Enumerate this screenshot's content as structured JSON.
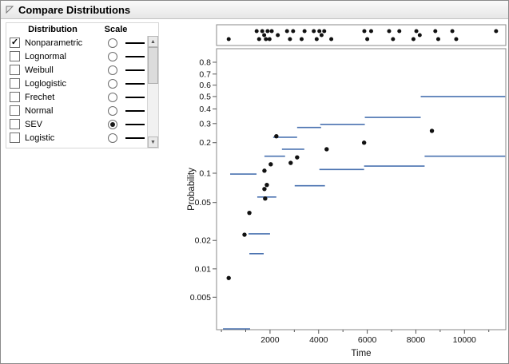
{
  "window": {
    "title": "Compare Distributions"
  },
  "glyphs": {
    "checkmark": "✓",
    "scroll_up": "▲",
    "scroll_down": "▼"
  },
  "panel": {
    "header": {
      "distribution": "Distribution",
      "scale": "Scale"
    },
    "rows": [
      {
        "label": "Nonparametric",
        "checked": true,
        "scale_selected": false
      },
      {
        "label": "Lognormal",
        "checked": false,
        "scale_selected": false
      },
      {
        "label": "Weibull",
        "checked": false,
        "scale_selected": false
      },
      {
        "label": "Loglogistic",
        "checked": false,
        "scale_selected": false
      },
      {
        "label": "Frechet",
        "checked": false,
        "scale_selected": false
      },
      {
        "label": "Normal",
        "checked": false,
        "scale_selected": false
      },
      {
        "label": "SEV",
        "checked": false,
        "scale_selected": true
      },
      {
        "label": "Logistic",
        "checked": false,
        "scale_selected": false
      }
    ]
  },
  "chart_data": {
    "type": "scatter",
    "title": "",
    "xlabel": "Time",
    "ylabel": "Probability",
    "y_scale": "sev-probability",
    "axes": {
      "xlim": [
        -200,
        11700
      ],
      "x_ticks": [
        2000,
        4000,
        6000,
        8000,
        10000
      ],
      "x_minor_ticks": [
        0,
        1000,
        3000,
        5000,
        7000,
        9000,
        11000
      ],
      "y_ticks": [
        0.8,
        0.7,
        0.6,
        0.5,
        0.4,
        0.3,
        0.2,
        0.1,
        0.05,
        0.02,
        0.01,
        0.005
      ]
    },
    "colors": {
      "points": "#111111",
      "steps": "#4a72b0",
      "frame": "#8a8a8a",
      "tick": "#555555"
    },
    "points_columns": [
      "time",
      "probability"
    ],
    "points": [
      [
        300,
        0.008
      ],
      [
        950,
        0.023
      ],
      [
        1150,
        0.039
      ],
      [
        1770,
        0.069
      ],
      [
        1800,
        0.055
      ],
      [
        1870,
        0.076
      ],
      [
        1770,
        0.106
      ],
      [
        2030,
        0.123
      ],
      [
        2260,
        0.23
      ],
      [
        2850,
        0.127
      ],
      [
        3115,
        0.144
      ],
      [
        4330,
        0.173
      ],
      [
        5870,
        0.2
      ],
      [
        8660,
        0.258
      ]
    ],
    "step_segments_columns": [
      "t_start",
      "t_end",
      "probability"
    ],
    "step_segments": [
      [
        65,
        1180,
        0.0023
      ],
      [
        360,
        1445,
        0.098
      ],
      [
        1115,
        2000,
        0.0235
      ],
      [
        1150,
        1740,
        0.0145
      ],
      [
        1475,
        2260,
        0.057
      ],
      [
        1770,
        2620,
        0.148
      ],
      [
        2130,
        3115,
        0.225
      ],
      [
        2490,
        3410,
        0.173
      ],
      [
        3015,
        4260,
        0.0745
      ],
      [
        3115,
        4100,
        0.277
      ],
      [
        4030,
        5870,
        0.109
      ],
      [
        4065,
        5900,
        0.295
      ],
      [
        5870,
        8360,
        0.118
      ],
      [
        5900,
        8200,
        0.34
      ],
      [
        8200,
        11675,
        0.5
      ],
      [
        8360,
        11675,
        0.148
      ]
    ],
    "event_times_columns": [
      "time",
      "jitter_row"
    ],
    "event_times": [
      [
        300,
        1
      ],
      [
        1450,
        0
      ],
      [
        1550,
        1
      ],
      [
        1680,
        0
      ],
      [
        1760,
        2
      ],
      [
        1830,
        1
      ],
      [
        1900,
        0
      ],
      [
        1980,
        1
      ],
      [
        2070,
        0
      ],
      [
        2320,
        2
      ],
      [
        2700,
        0
      ],
      [
        2820,
        1
      ],
      [
        2950,
        0
      ],
      [
        3300,
        1
      ],
      [
        3420,
        0
      ],
      [
        3800,
        0
      ],
      [
        3920,
        1
      ],
      [
        4030,
        0
      ],
      [
        4120,
        2
      ],
      [
        4230,
        0
      ],
      [
        4520,
        1
      ],
      [
        5880,
        0
      ],
      [
        6000,
        1
      ],
      [
        6160,
        0
      ],
      [
        6900,
        0
      ],
      [
        7060,
        1
      ],
      [
        7320,
        0
      ],
      [
        7900,
        1
      ],
      [
        8020,
        0
      ],
      [
        8160,
        2
      ],
      [
        8800,
        0
      ],
      [
        8920,
        1
      ],
      [
        9500,
        0
      ],
      [
        9660,
        1
      ],
      [
        11300,
        0
      ]
    ]
  }
}
